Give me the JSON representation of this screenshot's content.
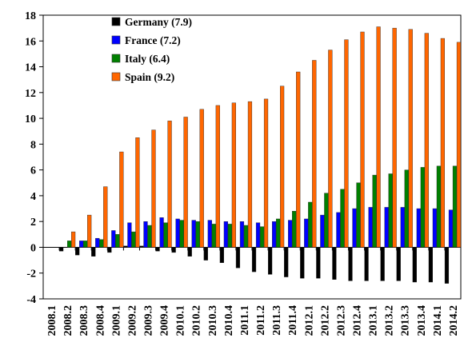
{
  "chart_data": {
    "type": "bar",
    "categories": [
      "2008.1",
      "2008.2",
      "2008.3",
      "2008.4",
      "2009.1",
      "2009.2",
      "2009.3",
      "2009.4",
      "2010.1",
      "2010.2",
      "2010.3",
      "2010.4",
      "2011.1",
      "2011.2",
      "2011.3",
      "2011.4",
      "2012.1",
      "2012.2",
      "2012.3",
      "2012.4",
      "2013.1",
      "2013.2",
      "2013.3",
      "2013.4",
      "2014.1",
      "2014.2"
    ],
    "ylim": [
      -4,
      18
    ],
    "yticks": [
      -4,
      -2,
      0,
      2,
      4,
      6,
      8,
      10,
      12,
      14,
      16,
      18
    ],
    "legend_position": "top-center",
    "series": [
      {
        "name": "Germany (7.9)",
        "color": "#000000",
        "values": [
          0,
          -0.3,
          -0.6,
          -0.7,
          -0.4,
          0.1,
          0.1,
          -0.3,
          -0.4,
          -0.7,
          -1.0,
          -1.2,
          -1.6,
          -1.9,
          -2.1,
          -2.3,
          -2.4,
          -2.4,
          -2.5,
          -2.6,
          -2.6,
          -2.6,
          -2.6,
          -2.7,
          -2.7,
          -2.8
        ]
      },
      {
        "name": "France (7.2)",
        "color": "#0000ff",
        "values": [
          0,
          0,
          0.5,
          0.7,
          1.3,
          1.9,
          2.0,
          2.3,
          2.2,
          2.1,
          2.1,
          2.0,
          2.0,
          1.9,
          2.0,
          2.1,
          2.2,
          2.5,
          2.7,
          3.0,
          3.1,
          3.1,
          3.1,
          3.0,
          3.0,
          2.9
        ]
      },
      {
        "name": "Italy (6.4)",
        "color": "#008000",
        "values": [
          0,
          0.5,
          0.5,
          0.6,
          1.0,
          1.2,
          1.7,
          1.9,
          2.1,
          2.0,
          1.8,
          1.8,
          1.7,
          1.6,
          2.2,
          2.8,
          3.5,
          4.2,
          4.5,
          5.0,
          5.6,
          5.7,
          6.0,
          6.2,
          6.3,
          6.3
        ]
      },
      {
        "name": "Spain (9.2)",
        "color": "#ff6600",
        "values": [
          0,
          1.2,
          2.5,
          4.7,
          7.4,
          8.5,
          9.1,
          9.8,
          10.1,
          10.7,
          11.0,
          11.2,
          11.3,
          11.5,
          12.5,
          13.6,
          14.5,
          15.3,
          16.1,
          16.7,
          17.1,
          17.0,
          16.9,
          16.6,
          16.2,
          15.9
        ]
      }
    ]
  }
}
